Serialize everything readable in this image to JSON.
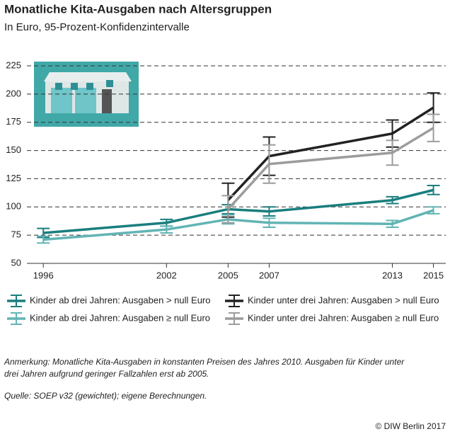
{
  "chart_data": {
    "type": "line",
    "title": "Monatliche Kita-Ausgaben nach Altersgruppen",
    "subtitle": "In Euro, 95-Prozent-Konfidenzintervalle",
    "x": [
      1996,
      2002,
      2005,
      2007,
      2013,
      2015
    ],
    "xlim": [
      1995.2,
      2015.6
    ],
    "xticks": [
      1996,
      2002,
      2005,
      2007,
      2013,
      2015
    ],
    "ylim": [
      50,
      225
    ],
    "yticks": [
      50,
      75,
      100,
      125,
      150,
      175,
      200,
      225
    ],
    "grid": true,
    "series": [
      {
        "name": "Kinder ab drei Jahren: Ausgaben > null Euro",
        "color": "#1a7e7e",
        "values": [
          77,
          86,
          98,
          96,
          106,
          115
        ],
        "errors": [
          4,
          3,
          4,
          4,
          3,
          4
        ]
      },
      {
        "name": "Kinder ab drei Jahren: Ausgaben ≥ null Euro",
        "color": "#62b4b4",
        "values": [
          71,
          80,
          89,
          86,
          85,
          97
        ],
        "errors": [
          3,
          3,
          4,
          4,
          3,
          3
        ]
      },
      {
        "name": "Kinder unter drei Jahren: Ausgaben > null Euro",
        "color": "#222222",
        "values": [
          null,
          null,
          106,
          145,
          165,
          188
        ],
        "errors": [
          null,
          null,
          15,
          17,
          12,
          13
        ]
      },
      {
        "name": "Kinder unter drei Jahren: Ausgaben ≥ null Euro",
        "color": "#9c9c9c",
        "values": [
          null,
          null,
          98,
          138,
          148,
          170
        ],
        "errors": [
          null,
          null,
          12,
          17,
          11,
          12
        ]
      }
    ],
    "note": [
      "Anmerkung: Monatliche Kita-Ausgaben in konstanten Preisen des Jahres 2010. Ausgaben für Kinder unter",
      "drei Jahren aufgrund geringer Fallzahlen erst ab 2005."
    ],
    "source": "Quelle: SOEP v32 (gewichtet); eigene Berechnungen.",
    "copyright": "© DIW Berlin 2017"
  }
}
